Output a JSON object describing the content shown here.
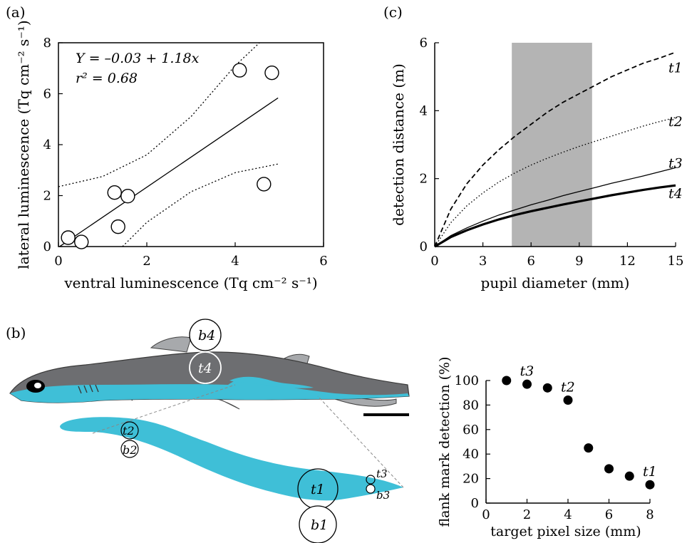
{
  "panel_labels": {
    "a": "(a)",
    "b": "(b)",
    "c": "(c)"
  },
  "colors": {
    "fish_body": "#6d6e71",
    "fin": "#a7a9ac",
    "luminous": "#3fbfd7",
    "shade": "#b4b4b4",
    "ink": "#000000"
  },
  "chart_data": [
    {
      "id": "panel_a",
      "type": "scatter",
      "xlabel": "ventral luminescence (Tq cm⁻² s⁻¹)",
      "ylabel": "lateral luminescence (Tq cm⁻² s⁻¹)",
      "xlim": [
        0,
        6
      ],
      "ylim": [
        0,
        8
      ],
      "xticks": [
        "0",
        "2",
        "4",
        "6"
      ],
      "yticks": [
        "0",
        "2",
        "4",
        "6",
        "8"
      ],
      "grid": false,
      "points": [
        {
          "x": 0.22,
          "y": 0.35
        },
        {
          "x": 0.52,
          "y": 0.18
        },
        {
          "x": 1.27,
          "y": 2.12
        },
        {
          "x": 1.35,
          "y": 0.78
        },
        {
          "x": 1.57,
          "y": 1.98
        },
        {
          "x": 4.1,
          "y": 6.92
        },
        {
          "x": 4.65,
          "y": 2.45
        },
        {
          "x": 4.83,
          "y": 6.82
        }
      ],
      "equation": "Y = –0.03 + 1.18x",
      "r2": "r² = 0.68",
      "fit": {
        "intercept": -0.03,
        "slope": 1.18,
        "x_range": [
          0.03,
          4.97
        ]
      },
      "ci_upper": [
        [
          0.0,
          2.35
        ],
        [
          1.0,
          2.75
        ],
        [
          2.0,
          3.6
        ],
        [
          3.0,
          5.1
        ],
        [
          4.0,
          7.1
        ],
        [
          4.55,
          8.0
        ]
      ],
      "ci_lower": [
        [
          1.45,
          0.0
        ],
        [
          2.0,
          0.95
        ],
        [
          3.0,
          2.15
        ],
        [
          4.0,
          2.9
        ],
        [
          5.0,
          3.25
        ]
      ]
    },
    {
      "id": "panel_c",
      "type": "line",
      "xlabel": "pupil diameter (mm)",
      "ylabel": "detection distance (m)",
      "xlim": [
        0,
        15
      ],
      "ylim": [
        0,
        6
      ],
      "xticks": [
        "0",
        "3",
        "6",
        "9",
        "12",
        "15"
      ],
      "yticks": [
        "0",
        "2",
        "4",
        "6"
      ],
      "shaded_band": {
        "x0": 4.8,
        "x1": 9.8
      },
      "series": [
        {
          "name": "t1",
          "style": "dashed",
          "x": [
            0,
            1,
            2,
            3,
            4,
            5,
            6,
            7,
            8,
            9,
            10,
            11,
            12,
            13,
            14,
            15
          ],
          "values": [
            0,
            1.1,
            1.85,
            2.4,
            2.85,
            3.25,
            3.6,
            3.95,
            4.25,
            4.5,
            4.75,
            5.0,
            5.2,
            5.4,
            5.55,
            5.72
          ]
        },
        {
          "name": "t2",
          "style": "dotted",
          "x": [
            0,
            1,
            2,
            3,
            4,
            5,
            6,
            7,
            8,
            9,
            10,
            11,
            12,
            13,
            14,
            15
          ],
          "values": [
            0,
            0.7,
            1.2,
            1.58,
            1.9,
            2.17,
            2.4,
            2.6,
            2.78,
            2.95,
            3.1,
            3.25,
            3.4,
            3.55,
            3.68,
            3.8
          ]
        },
        {
          "name": "t3",
          "style": "thin",
          "x": [
            0,
            1,
            2,
            3,
            4,
            5,
            6,
            7,
            8,
            9,
            10,
            11,
            12,
            13,
            14,
            15
          ],
          "values": [
            0,
            0.32,
            0.55,
            0.75,
            0.93,
            1.08,
            1.23,
            1.36,
            1.5,
            1.62,
            1.74,
            1.86,
            1.97,
            2.08,
            2.2,
            2.32
          ]
        },
        {
          "name": "t4",
          "style": "thick",
          "x": [
            0,
            1,
            2,
            3,
            4,
            5,
            6,
            7,
            8,
            9,
            10,
            11,
            12,
            13,
            14,
            15
          ],
          "values": [
            0,
            0.28,
            0.48,
            0.65,
            0.8,
            0.93,
            1.04,
            1.14,
            1.24,
            1.33,
            1.42,
            1.51,
            1.59,
            1.67,
            1.74,
            1.8
          ]
        }
      ]
    },
    {
      "id": "panel_b_inset",
      "type": "scatter",
      "xlabel": "target pixel size (mm)",
      "ylabel": "flank mark detection (%)",
      "xlim": [
        0,
        8
      ],
      "ylim": [
        0,
        100
      ],
      "xticks": [
        "0",
        "2",
        "4",
        "6",
        "8"
      ],
      "yticks": [
        "0",
        "20",
        "40",
        "60",
        "80",
        "100"
      ],
      "points": [
        {
          "x": 1,
          "y": 100
        },
        {
          "x": 2,
          "y": 97,
          "label": "t3"
        },
        {
          "x": 3,
          "y": 94
        },
        {
          "x": 4,
          "y": 84,
          "label": "t2"
        },
        {
          "x": 5,
          "y": 45
        },
        {
          "x": 6,
          "y": 28
        },
        {
          "x": 7,
          "y": 22
        },
        {
          "x": 8,
          "y": 15,
          "label": "t1"
        }
      ]
    }
  ],
  "fish_labels": {
    "b4": "b4",
    "t4": "t4",
    "t2": "t2",
    "b2": "b2",
    "t1": "t1",
    "b1": "b1",
    "t3": "t3",
    "b3": "b3"
  }
}
